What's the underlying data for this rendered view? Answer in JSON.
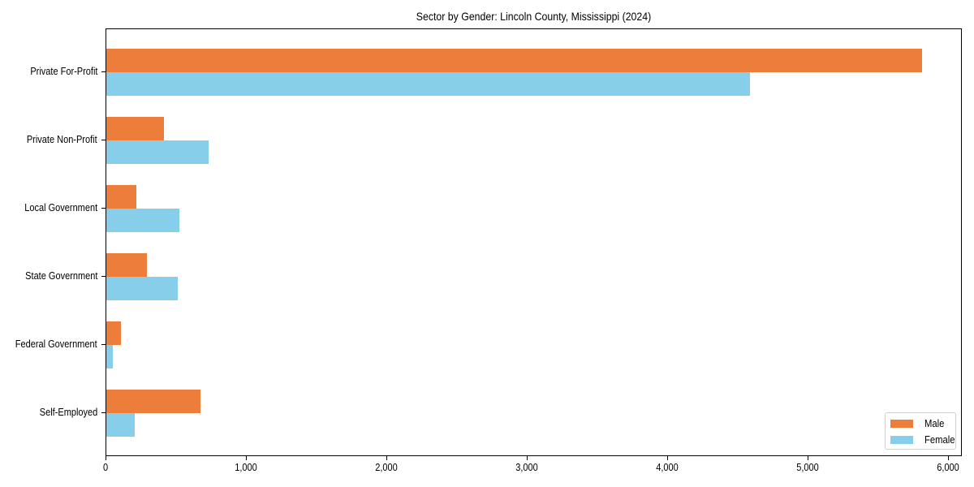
{
  "chart_data": {
    "type": "bar",
    "orientation": "horizontal",
    "title": "Sector by Gender: Lincoln County, Mississippi (2024)",
    "xlabel": "",
    "ylabel": "",
    "categories": [
      "Private For-Profit",
      "Private Non-Profit",
      "Local Government",
      "State Government",
      "Federal Government",
      "Self-Employed"
    ],
    "series": [
      {
        "name": "Male",
        "color": "#ED7D3A",
        "values": [
          5810,
          410,
          214,
          289,
          104,
          671
        ]
      },
      {
        "name": "Female",
        "color": "#87CEEB",
        "values": [
          4584,
          728,
          520,
          509,
          45,
          202
        ]
      }
    ],
    "xlim": [
      0,
      6100
    ],
    "xticks": [
      0,
      1000,
      2000,
      3000,
      4000,
      5000,
      6000
    ],
    "xtick_labels": [
      "0",
      "1,000",
      "2,000",
      "3,000",
      "4,000",
      "5,000",
      "6,000"
    ],
    "grid": false,
    "legend_position": "lower right"
  },
  "legend": {
    "items": [
      {
        "label": "Male",
        "color": "#ED7D3A"
      },
      {
        "label": "Female",
        "color": "#87CEEB"
      }
    ]
  }
}
